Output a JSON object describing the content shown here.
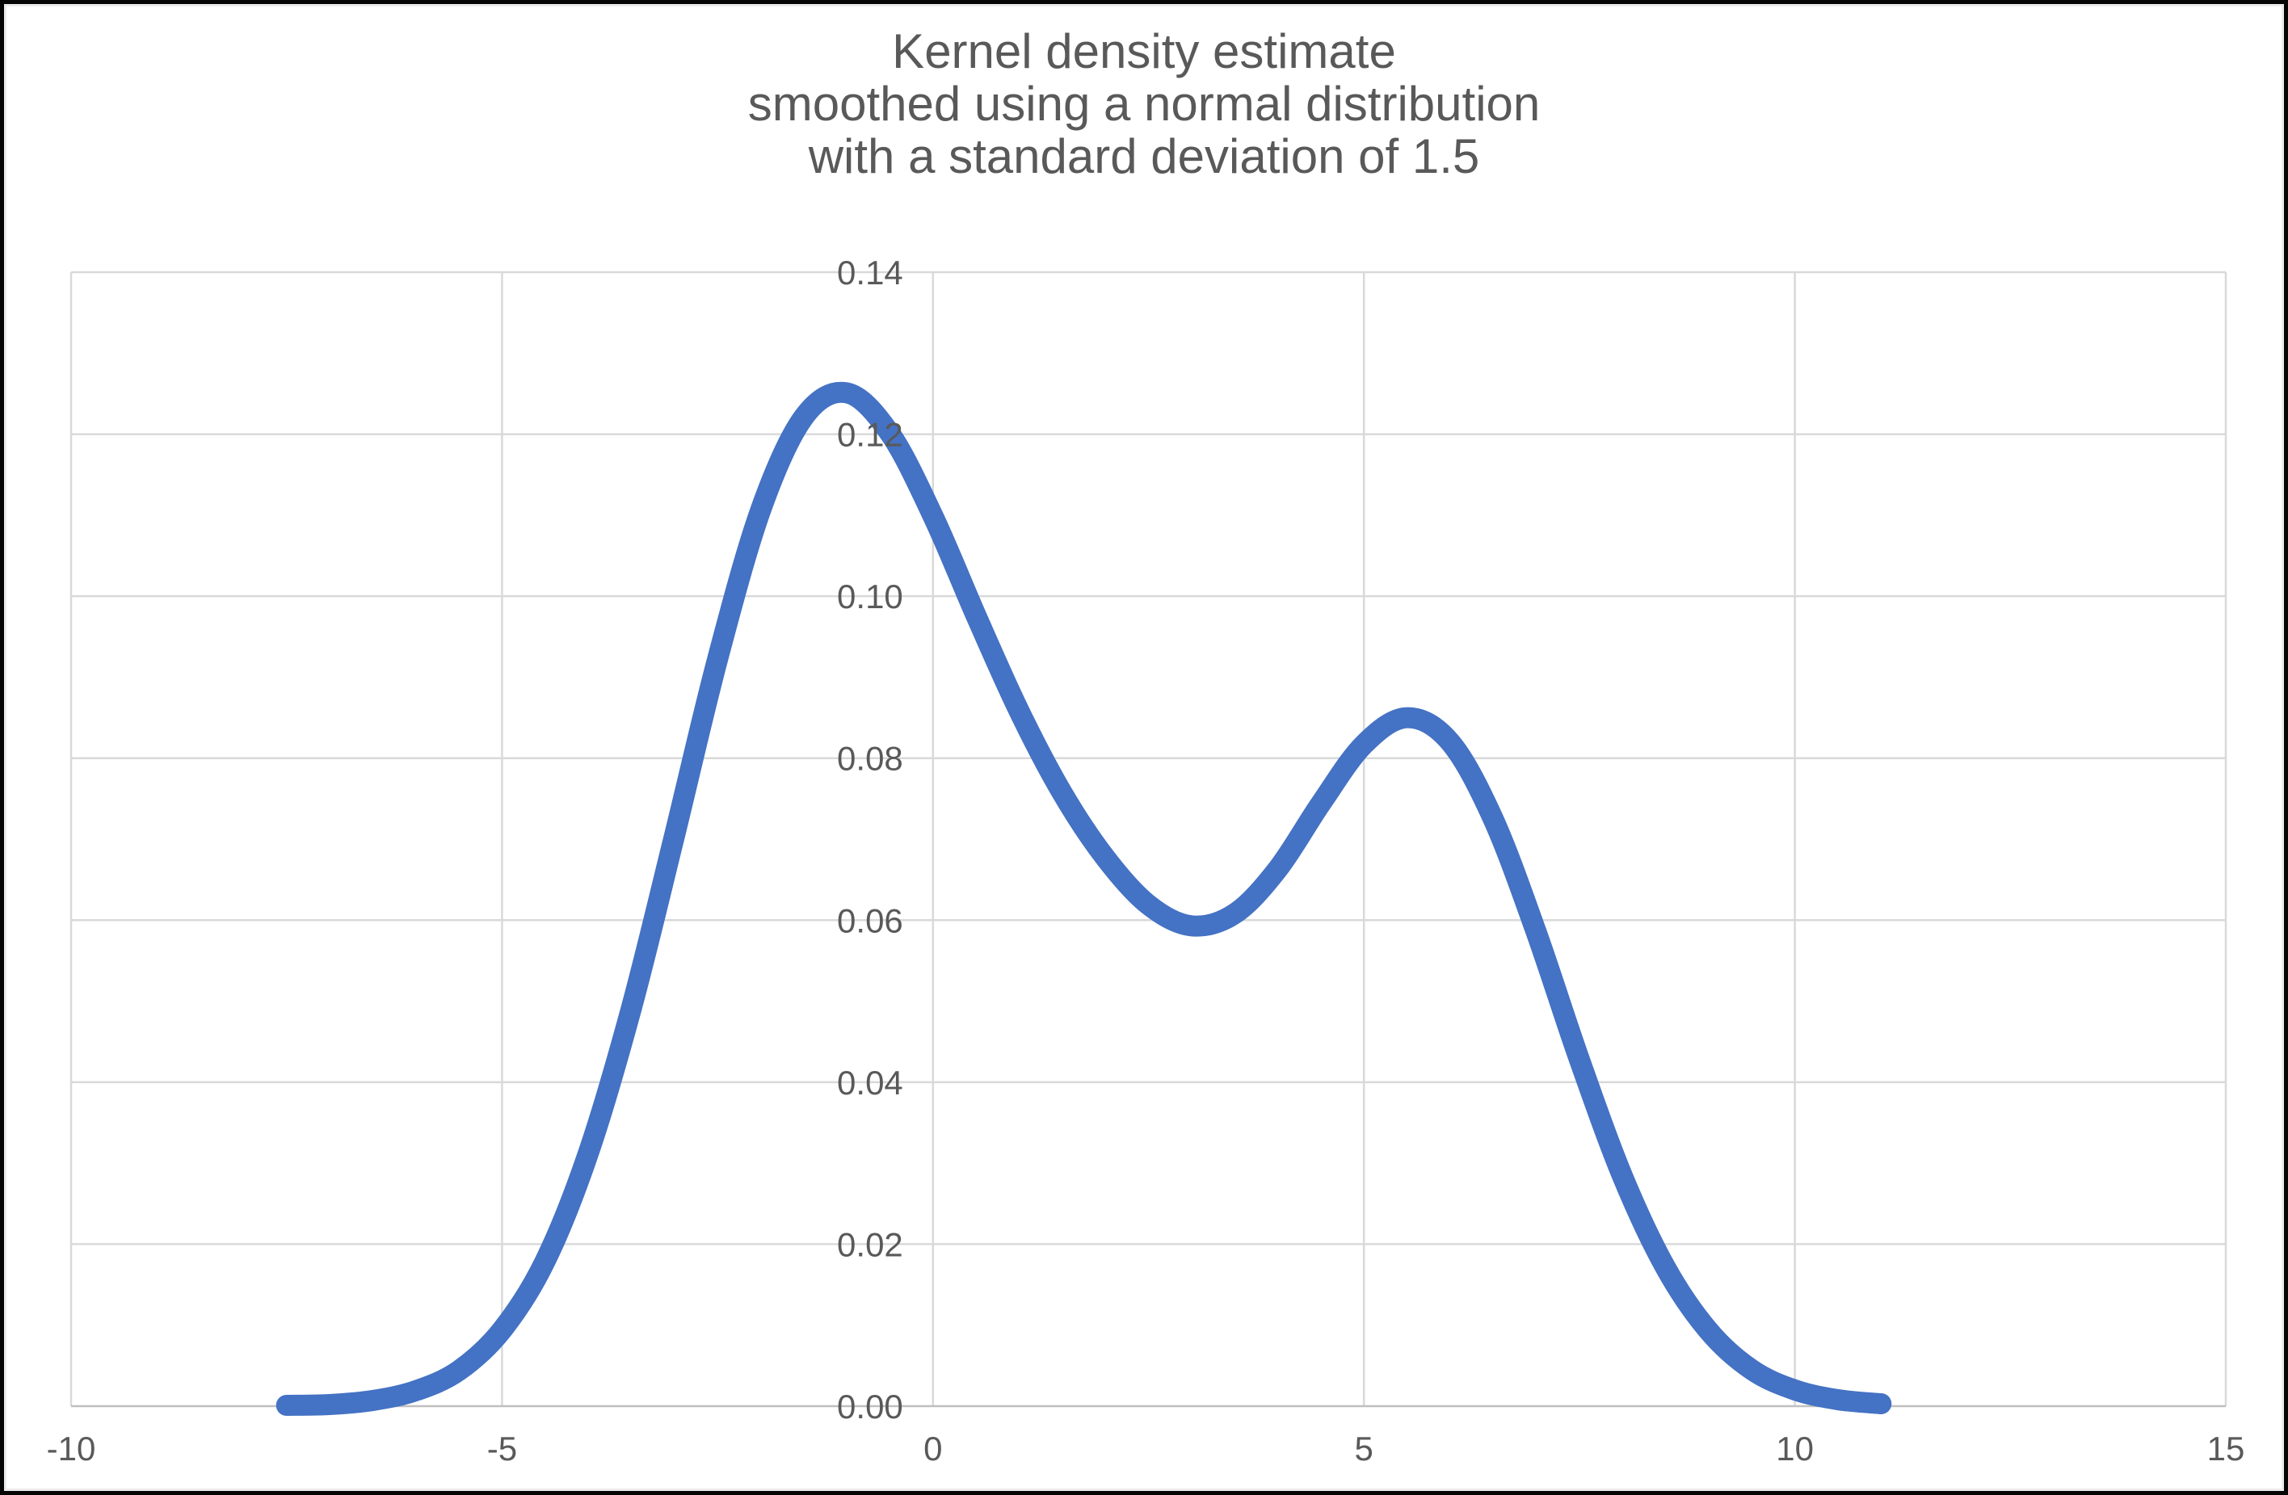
{
  "window": {
    "background_color": "#FFFFFF",
    "border_color": "#050505"
  },
  "chart_data": {
    "type": "line",
    "title": "Kernel density estimate smoothed using a normal distribution with a standard deviation of 1.5",
    "title_lines": [
      "Kernel density estimate",
      "smoothed using a normal distribution",
      "with a standard deviation of 1.5"
    ],
    "series": [
      {
        "x": [
          -7.5,
          -7.0,
          -6.5,
          -6.0,
          -5.5,
          -5.0,
          -4.5,
          -4.0,
          -3.5,
          -3.0,
          -2.5,
          -2.0,
          -1.5,
          -1.0,
          -0.5,
          0.0,
          0.5,
          1.0,
          1.5,
          2.0,
          2.5,
          3.0,
          3.5,
          4.0,
          4.5,
          5.0,
          5.5,
          6.0,
          6.5,
          7.0,
          7.5,
          8.0,
          8.5,
          9.0,
          9.5,
          10.0,
          10.5,
          11.0
        ],
        "y": [
          0.0001,
          0.0002,
          0.0007,
          0.0019,
          0.0044,
          0.0094,
          0.0179,
          0.0312,
          0.0491,
          0.0704,
          0.0922,
          0.1106,
          0.1221,
          0.1251,
          0.1201,
          0.1099,
          0.0976,
          0.0858,
          0.0757,
          0.0677,
          0.0619,
          0.0593,
          0.0608,
          0.0663,
          0.0744,
          0.0817,
          0.085,
          0.082,
          0.0725,
          0.0585,
          0.0428,
          0.0284,
          0.0171,
          0.0093,
          0.0045,
          0.002,
          0.0008,
          0.0003
        ]
      }
    ],
    "xlim": [
      -10,
      15
    ],
    "ylim": [
      0,
      0.14
    ],
    "x_ticks": [
      "-10",
      "-5",
      "0",
      "5",
      "10",
      "15"
    ],
    "x_tick_values": [
      -10,
      -5,
      0,
      5,
      10,
      15
    ],
    "y_ticks": [
      "0.00",
      "0.02",
      "0.04",
      "0.06",
      "0.08",
      "0.10",
      "0.12",
      "0.14"
    ],
    "y_tick_values": [
      0,
      0.02,
      0.04,
      0.06,
      0.08,
      0.1,
      0.12,
      0.14
    ],
    "grid": true,
    "legend": "none",
    "y_axis_labels_position": "at x = 0",
    "line_color": "#4472C4",
    "line_width": 26,
    "gridline_color": "#D9D9D9",
    "axis_line_color": "#BFBFBF",
    "tick_label_color": "#595959",
    "title_color": "#595959"
  }
}
